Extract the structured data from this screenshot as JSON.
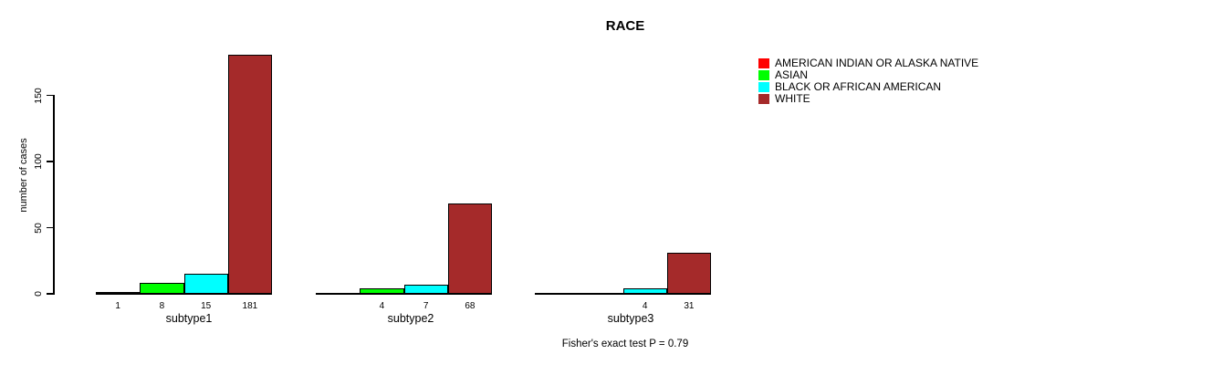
{
  "chart": {
    "title": "RACE",
    "y_axis": {
      "label": "number of cases"
    },
    "footnote": "Fisher's exact test P = 0.79"
  },
  "legend": {
    "items": [
      {
        "label": "AMERICAN INDIAN OR ALASKA NATIVE",
        "color": "#FF0000"
      },
      {
        "label": "ASIAN",
        "color": "#00FF00"
      },
      {
        "label": "BLACK OR AFRICAN AMERICAN",
        "color": "#00FFFF"
      },
      {
        "label": "WHITE",
        "color": "#A52A2A"
      }
    ]
  },
  "chart_data": {
    "type": "bar",
    "grouped": true,
    "title": "RACE",
    "xlabel": "",
    "ylabel": "number of cases",
    "categories": [
      "subtype1",
      "subtype2",
      "subtype3"
    ],
    "series": [
      {
        "name": "AMERICAN INDIAN OR ALASKA NATIVE",
        "color": "#FF0000",
        "values": [
          1,
          0,
          0
        ]
      },
      {
        "name": "ASIAN",
        "color": "#00FF00",
        "values": [
          8,
          4,
          0
        ]
      },
      {
        "name": "BLACK OR AFRICAN AMERICAN",
        "color": "#00FFFF",
        "values": [
          15,
          7,
          4
        ]
      },
      {
        "name": "WHITE",
        "color": "#A52A2A",
        "values": [
          181,
          68,
          31
        ]
      }
    ],
    "bar_value_labels_rule": "values greater than zero are printed under each bar",
    "visible_bar_labels": {
      "subtype1": [
        "1",
        "8",
        "15",
        "181"
      ],
      "subtype2": [
        "4",
        "7",
        "68"
      ],
      "subtype3": [
        "4",
        "31"
      ]
    },
    "ylim": [
      0,
      181
    ],
    "yticks": [
      0,
      50,
      100,
      150
    ],
    "grid": false,
    "legend_position": "top-right",
    "annotation": "Fisher's exact test P = 0.79"
  }
}
